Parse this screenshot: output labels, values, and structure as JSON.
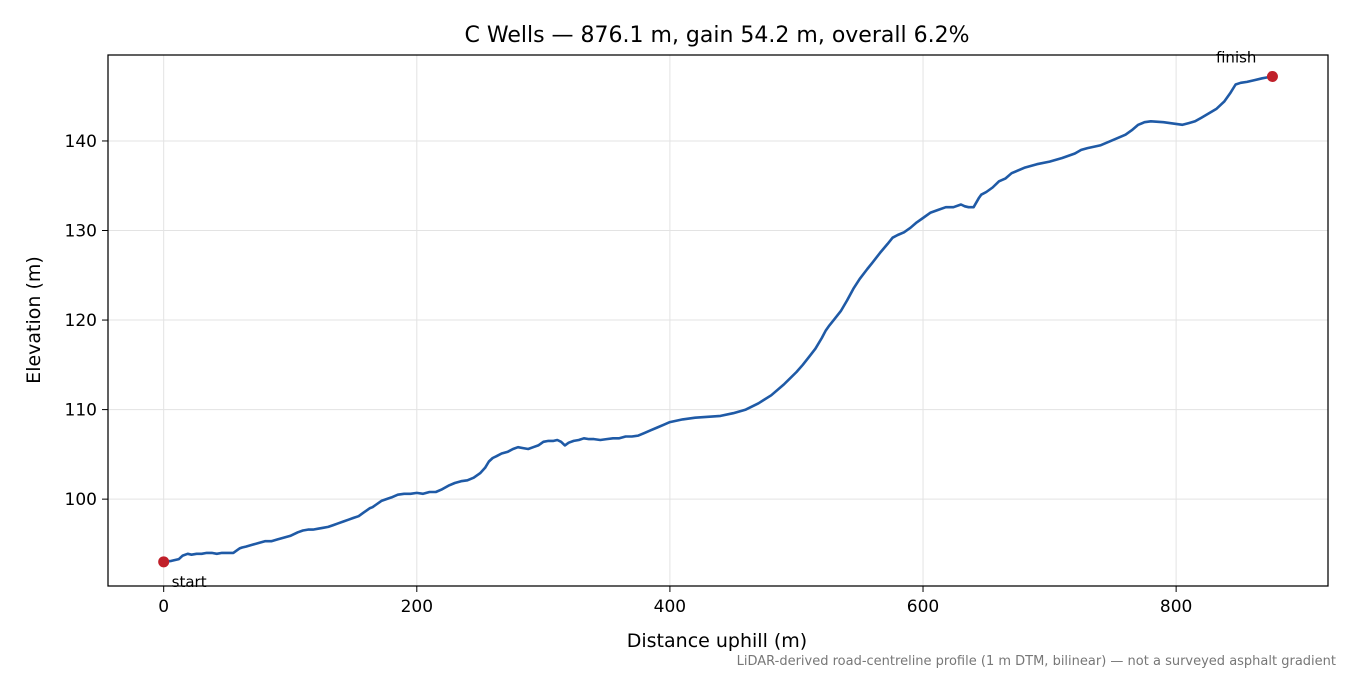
{
  "chart_data": {
    "type": "line",
    "title": "C Wells — 876.1 m, gain 54.2 m, overall 6.2%",
    "xlabel": "Distance uphill (m)",
    "ylabel": "Elevation (m)",
    "xlim": [
      -44,
      920
    ],
    "ylim": [
      90.3,
      149.6
    ],
    "xticks": [
      0,
      200,
      400,
      600,
      800
    ],
    "yticks": [
      100,
      110,
      120,
      130,
      140
    ],
    "grid": true,
    "footnote": "LiDAR-derived road-centreline profile (1 m DTM, bilinear) — not a surveyed asphalt gradient",
    "colors": {
      "line": "#1f5aa6",
      "marker": "#c0202a"
    },
    "series": [
      {
        "x": [
          0,
          6,
          12,
          15,
          19,
          22,
          26,
          30,
          34,
          38,
          42,
          46,
          50,
          55,
          58,
          60,
          62,
          65,
          70,
          75,
          80,
          85,
          90,
          95,
          100,
          106,
          110,
          114,
          118,
          122,
          126,
          130,
          134,
          138,
          142,
          146,
          150,
          154,
          158,
          161,
          163,
          165,
          168,
          172,
          176,
          180,
          185,
          190,
          195,
          200,
          205,
          210,
          215,
          220,
          225,
          230,
          235,
          240,
          245,
          250,
          254,
          257,
          260,
          263,
          267,
          272,
          276,
          280,
          284,
          288,
          292,
          296,
          300,
          304,
          308,
          311,
          314,
          317,
          320,
          324,
          328,
          332,
          336,
          340,
          345,
          350,
          355,
          360,
          365,
          370,
          375,
          380,
          385,
          390,
          395,
          400,
          410,
          420,
          430,
          440,
          450,
          460,
          470,
          480,
          490,
          500,
          505,
          510,
          515,
          520,
          523,
          526,
          530,
          535,
          540,
          545,
          550,
          556,
          560,
          566,
          572,
          576,
          580,
          585,
          590,
          595,
          600,
          606,
          612,
          618,
          624,
          630,
          633,
          636,
          640,
          644,
          646,
          650,
          655,
          660,
          665,
          670,
          680,
          690,
          700,
          710,
          720,
          725,
          730,
          740,
          750,
          760,
          765,
          770,
          775,
          780,
          790,
          800,
          805,
          810,
          815,
          820,
          826,
          832,
          838,
          843,
          847,
          851,
          856,
          862,
          868,
          872,
          876.1
        ],
        "y": [
          93.0,
          93.1,
          93.3,
          93.7,
          93.9,
          93.8,
          93.9,
          93.9,
          94.0,
          94.0,
          93.9,
          94.0,
          94.0,
          94.0,
          94.3,
          94.5,
          94.6,
          94.7,
          94.9,
          95.1,
          95.3,
          95.3,
          95.5,
          95.7,
          95.9,
          96.3,
          96.5,
          96.6,
          96.6,
          96.7,
          96.8,
          96.9,
          97.1,
          97.3,
          97.5,
          97.7,
          97.9,
          98.1,
          98.5,
          98.8,
          99.0,
          99.1,
          99.4,
          99.8,
          100.0,
          100.2,
          100.5,
          100.6,
          100.6,
          100.7,
          100.6,
          100.8,
          100.8,
          101.1,
          101.5,
          101.8,
          102.0,
          102.1,
          102.4,
          102.9,
          103.5,
          104.2,
          104.6,
          104.8,
          105.1,
          105.3,
          105.6,
          105.8,
          105.7,
          105.6,
          105.8,
          106.0,
          106.4,
          106.5,
          106.5,
          106.6,
          106.4,
          106.0,
          106.3,
          106.5,
          106.6,
          106.8,
          106.7,
          106.7,
          106.6,
          106.7,
          106.8,
          106.8,
          107.0,
          107.0,
          107.1,
          107.4,
          107.7,
          108.0,
          108.3,
          108.6,
          108.9,
          109.1,
          109.2,
          109.3,
          109.6,
          110.0,
          110.7,
          111.6,
          112.8,
          114.2,
          115.0,
          115.9,
          116.8,
          118.0,
          118.8,
          119.4,
          120.1,
          121.0,
          122.2,
          123.5,
          124.6,
          125.7,
          126.4,
          127.5,
          128.5,
          129.2,
          129.5,
          129.8,
          130.3,
          130.9,
          131.4,
          132.0,
          132.3,
          132.6,
          132.6,
          132.9,
          132.7,
          132.6,
          132.6,
          133.6,
          134.0,
          134.3,
          134.8,
          135.5,
          135.8,
          136.4,
          137.0,
          137.4,
          137.7,
          138.1,
          138.6,
          139.0,
          139.2,
          139.5,
          140.1,
          140.7,
          141.2,
          141.8,
          142.1,
          142.2,
          142.1,
          141.9,
          141.8,
          142.0,
          142.2,
          142.6,
          143.1,
          143.6,
          144.4,
          145.4,
          146.3,
          146.5,
          146.6,
          146.8,
          147.0,
          147.1,
          147.2
        ]
      }
    ],
    "annotations": [
      {
        "text": "start",
        "x": 0,
        "y": 93.0
      },
      {
        "text": "finish",
        "x": 876.1,
        "y": 147.2
      }
    ]
  }
}
